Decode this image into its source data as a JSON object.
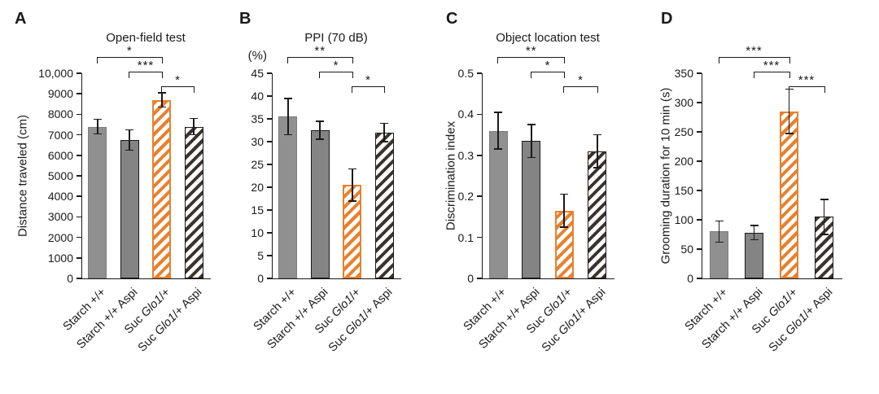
{
  "figure": {
    "background": "#ffffff",
    "text_color": "#1a1a1a",
    "accent_orange": "#e8802e",
    "italic_tokens": [
      "Glo1"
    ],
    "bar_styles": [
      {
        "name": "solid-gray",
        "fill": "#909090",
        "stripe": null,
        "border": "#7c7c7c",
        "border_width": 1
      },
      {
        "name": "solid-gray-outlined",
        "fill": "#848484",
        "stripe": null,
        "border": "#1a1a1a",
        "border_width": 1.6
      },
      {
        "name": "orange-hatched",
        "fill": "#ffffff",
        "stripe": "#e8802e",
        "border": "#e8802e",
        "border_width": 2,
        "stripe_w": 4,
        "gap_w": 5
      },
      {
        "name": "dark-hatched-outlined",
        "fill": "#ffffff",
        "stripe": "#3a342e",
        "border": "#1a1a1a",
        "border_width": 1.8,
        "stripe_w": 4,
        "gap_w": 5
      }
    ]
  },
  "chart_data": [
    {
      "panel": "A",
      "type": "bar",
      "title": "Open-field test",
      "ylabel": "Distance traveled (cm)",
      "ylabel_rotated": true,
      "categories": [
        "Starch +/+",
        "Starch +/+ Aspi",
        "Suc Glo1/+",
        "Suc Glo1/+ Aspi"
      ],
      "values": [
        7400,
        6750,
        8700,
        7400
      ],
      "errors": [
        350,
        500,
        350,
        400
      ],
      "ylim": [
        0,
        10000
      ],
      "yticks": [
        {
          "v": 0,
          "label": "0"
        },
        {
          "v": 1000,
          "label": "1000"
        },
        {
          "v": 2000,
          "label": "2000"
        },
        {
          "v": 3000,
          "label": "3000"
        },
        {
          "v": 4000,
          "label": "4000"
        },
        {
          "v": 5000,
          "label": "5000"
        },
        {
          "v": 6000,
          "label": "6000"
        },
        {
          "v": 7000,
          "label": "7000"
        },
        {
          "v": 8000,
          "label": "8000"
        },
        {
          "v": 9000,
          "label": "9000"
        },
        {
          "v": 10000,
          "label": "10,000"
        }
      ],
      "significance": [
        {
          "from": 0,
          "to": 2,
          "label": "*",
          "level": 2
        },
        {
          "from": 1,
          "to": 2,
          "label": "***",
          "level": 1
        },
        {
          "from": 2,
          "to": 3,
          "label": "*",
          "level": 0
        }
      ]
    },
    {
      "panel": "B",
      "type": "bar",
      "title": "PPI (70 dB)",
      "ylabel": "(%)",
      "ylabel_rotated": false,
      "categories": [
        "Starch +/+",
        "Starch +/+ Aspi",
        "Suc Glo1/+",
        "Suc Glo1/+ Aspi"
      ],
      "values": [
        35.5,
        32.5,
        20.5,
        32
      ],
      "errors": [
        4,
        2,
        3.5,
        2
      ],
      "ylim": [
        0,
        45
      ],
      "yticks": [
        {
          "v": 0,
          "label": "0"
        },
        {
          "v": 5,
          "label": "5"
        },
        {
          "v": 10,
          "label": "10"
        },
        {
          "v": 15,
          "label": "15"
        },
        {
          "v": 20,
          "label": "20"
        },
        {
          "v": 25,
          "label": "25"
        },
        {
          "v": 30,
          "label": "30"
        },
        {
          "v": 35,
          "label": "35"
        },
        {
          "v": 40,
          "label": "40"
        },
        {
          "v": 45,
          "label": "45"
        }
      ],
      "significance": [
        {
          "from": 0,
          "to": 2,
          "label": "**",
          "level": 2
        },
        {
          "from": 1,
          "to": 2,
          "label": "*",
          "level": 1
        },
        {
          "from": 2,
          "to": 3,
          "label": "*",
          "level": 0
        }
      ]
    },
    {
      "panel": "C",
      "type": "bar",
      "title": "Object location test",
      "ylabel": "Discrimination index",
      "ylabel_rotated": true,
      "categories": [
        "Starch +/+",
        "Starch +/+ Aspi",
        "Suc Glo1/+",
        "Suc Glo1/+ Aspi"
      ],
      "values": [
        0.36,
        0.335,
        0.165,
        0.31
      ],
      "errors": [
        0.045,
        0.04,
        0.04,
        0.04
      ],
      "ylim": [
        0,
        0.5
      ],
      "yticks": [
        {
          "v": 0,
          "label": "0"
        },
        {
          "v": 0.1,
          "label": "0.1"
        },
        {
          "v": 0.2,
          "label": "0.2"
        },
        {
          "v": 0.3,
          "label": "0.3"
        },
        {
          "v": 0.4,
          "label": "0.4"
        },
        {
          "v": 0.5,
          "label": "0.5"
        }
      ],
      "significance": [
        {
          "from": 0,
          "to": 2,
          "label": "**",
          "level": 2
        },
        {
          "from": 1,
          "to": 2,
          "label": "*",
          "level": 1
        },
        {
          "from": 2,
          "to": 3,
          "label": "*",
          "level": 0
        }
      ]
    },
    {
      "panel": "D",
      "type": "bar",
      "title": "",
      "ylabel": "Grooming duration for 10 min (s)",
      "ylabel_rotated": true,
      "categories": [
        "Starch +/+",
        "Starch +/+ Aspi",
        "Suc Glo1/+",
        "Suc Glo1/+ Aspi"
      ],
      "values": [
        80,
        78,
        285,
        105
      ],
      "errors": [
        18,
        12,
        38,
        30
      ],
      "ylim": [
        0,
        350
      ],
      "yticks": [
        {
          "v": 0,
          "label": "0"
        },
        {
          "v": 50,
          "label": "50"
        },
        {
          "v": 100,
          "label": "100"
        },
        {
          "v": 150,
          "label": "150"
        },
        {
          "v": 200,
          "label": "200"
        },
        {
          "v": 250,
          "label": "250"
        },
        {
          "v": 300,
          "label": "300"
        },
        {
          "v": 350,
          "label": "350"
        }
      ],
      "significance": [
        {
          "from": 0,
          "to": 2,
          "label": "***",
          "level": 2
        },
        {
          "from": 1,
          "to": 2,
          "label": "***",
          "level": 1
        },
        {
          "from": 2,
          "to": 3,
          "label": "***",
          "level": 0
        }
      ]
    }
  ]
}
